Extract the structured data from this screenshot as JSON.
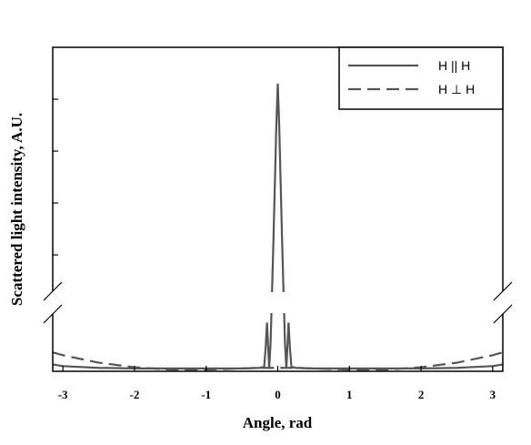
{
  "chart_data": {
    "type": "line",
    "x_label": "Angle, rad",
    "y_label": "Scattered light intensity, A.U.",
    "x": [
      -3.14159,
      -3,
      -2.5,
      -2,
      -1.5,
      -1,
      -0.5,
      -0.25,
      -0.19,
      -0.17,
      -0.15,
      -0.13,
      -0.12,
      -0.1,
      -0.08,
      -0.06,
      -0.04,
      -0.02,
      0,
      0.02,
      0.04,
      0.06,
      0.08,
      0.1,
      0.12,
      0.13,
      0.15,
      0.17,
      0.19,
      0.25,
      0.5,
      1,
      1.5,
      2,
      2.5,
      3,
      3.14159
    ],
    "series": [
      {
        "name": "H || H",
        "color": "#555555",
        "dash": "solid",
        "values": [
          0.12,
          0.09,
          0.06,
          0.05,
          0.05,
          0.05,
          0.05,
          0.06,
          0.08,
          0.4,
          0.85,
          0.3,
          0.05,
          0.5,
          1.3,
          2.3,
          3.4,
          4.5,
          5.3,
          4.5,
          3.4,
          2.3,
          1.3,
          0.5,
          0.05,
          0.3,
          0.85,
          0.4,
          0.08,
          0.06,
          0.05,
          0.05,
          0.05,
          0.05,
          0.06,
          0.09,
          0.12
        ]
      },
      {
        "name": "H ⊥ H",
        "color": "#555555",
        "dash": "dashed",
        "values": [
          0.33,
          0.28,
          0.15,
          0.07,
          0.03,
          0.03,
          0.05,
          0.06,
          0.06,
          0.06,
          0.06,
          0.06,
          0.06,
          0.06,
          0.06,
          0.06,
          0.06,
          0.06,
          0.06,
          0.06,
          0.06,
          0.06,
          0.06,
          0.06,
          0.06,
          0.06,
          0.06,
          0.06,
          0.06,
          0.06,
          0.05,
          0.03,
          0.03,
          0.07,
          0.15,
          0.28,
          0.33
        ]
      }
    ],
    "xlim": [
      -3.14159,
      3.14159
    ],
    "xticks": [
      -3,
      -2,
      -1,
      0,
      1,
      2,
      3
    ],
    "ylim": [
      0,
      6
    ],
    "y_break": [
      1,
      1.3
    ],
    "yticks": [
      2,
      3,
      4,
      5
    ],
    "legend": "upper right"
  }
}
